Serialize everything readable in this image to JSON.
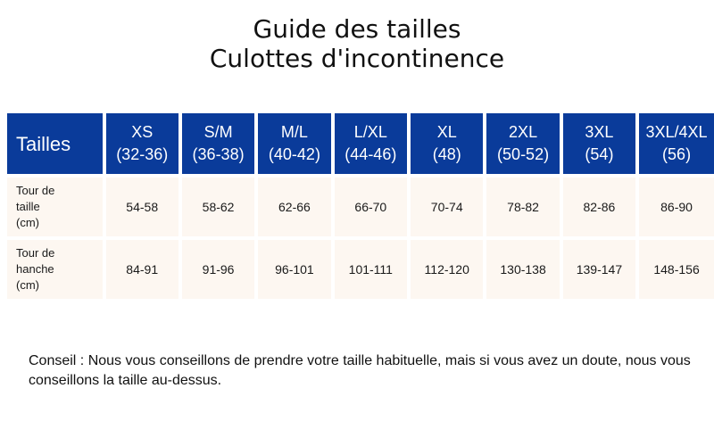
{
  "title": {
    "line1": "Guide des tailles",
    "line2": "Culottes d'incontinence"
  },
  "table": {
    "header_label": "Tailles",
    "sizes": [
      {
        "name": "XS",
        "range": "(32-36)"
      },
      {
        "name": "S/M",
        "range": "(36-38)"
      },
      {
        "name": "M/L",
        "range": "(40-42)"
      },
      {
        "name": "L/XL",
        "range": "(44-46)"
      },
      {
        "name": "XL",
        "range": "(48)"
      },
      {
        "name": "2XL",
        "range": "(50-52)"
      },
      {
        "name": "3XL",
        "range": "(54)"
      },
      {
        "name": "3XL/4XL",
        "range": "(56)"
      }
    ],
    "rows": [
      {
        "label_lines": [
          "Tour de",
          "taille",
          "(cm)"
        ],
        "values": [
          "54-58",
          "58-62",
          "62-66",
          "66-70",
          "70-74",
          "78-82",
          "82-86",
          "86-90"
        ]
      },
      {
        "label_lines": [
          "Tour de",
          "hanche",
          "(cm)"
        ],
        "values": [
          "84-91",
          "91-96",
          "96-101",
          "101-111",
          "112-120",
          "130-138",
          "139-147",
          "148-156"
        ]
      }
    ],
    "colors": {
      "header_bg": "#0a3b9a",
      "header_text": "#ffffff",
      "body_bg": "#fdf7f1"
    }
  },
  "note": "Conseil : Nous vous conseillons de prendre votre taille habituelle, mais si vous avez un doute, nous vous conseillons la taille au-dessus."
}
